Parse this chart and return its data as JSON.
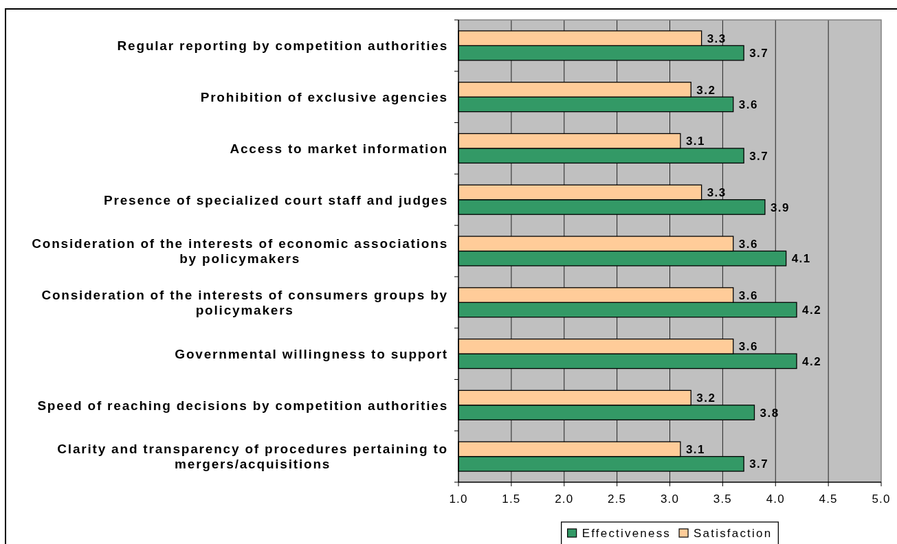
{
  "chart_data": {
    "type": "bar",
    "orientation": "horizontal",
    "categories": [
      "Regular reporting by competition authorities",
      "Prohibition of exclusive agencies",
      "Access to market information",
      "Presence of specialized court staff and judges",
      "Consideration of the interests of economic associations by policymakers",
      "Consideration of the interests of consumers groups by policymakers",
      "Governmental willingness to support",
      "Speed of reaching decisions by competition authorities",
      "Clarity and transparency of procedures pertaining to mergers/acquisitions"
    ],
    "series": [
      {
        "name": "Effectiveness",
        "color": "#339966",
        "values": [
          3.7,
          3.6,
          3.7,
          3.9,
          4.1,
          4.2,
          4.2,
          3.8,
          3.7
        ]
      },
      {
        "name": "Satisfaction",
        "color": "#ffcc99",
        "values": [
          3.3,
          3.2,
          3.1,
          3.3,
          3.6,
          3.6,
          3.6,
          3.2,
          3.1
        ]
      }
    ],
    "xlim": [
      1,
      5
    ],
    "xticks": [
      {
        "value": 1,
        "label": "1.0"
      },
      1.5,
      {
        "value": 2,
        "label": "2.0"
      },
      2.5,
      {
        "value": 3,
        "label": "3.0"
      },
      3.5,
      {
        "value": 4,
        "label": "4.0"
      },
      4.5,
      {
        "value": 5,
        "label": "5.0"
      }
    ],
    "grid": "x",
    "legend": "bottom",
    "data_labels": true
  }
}
